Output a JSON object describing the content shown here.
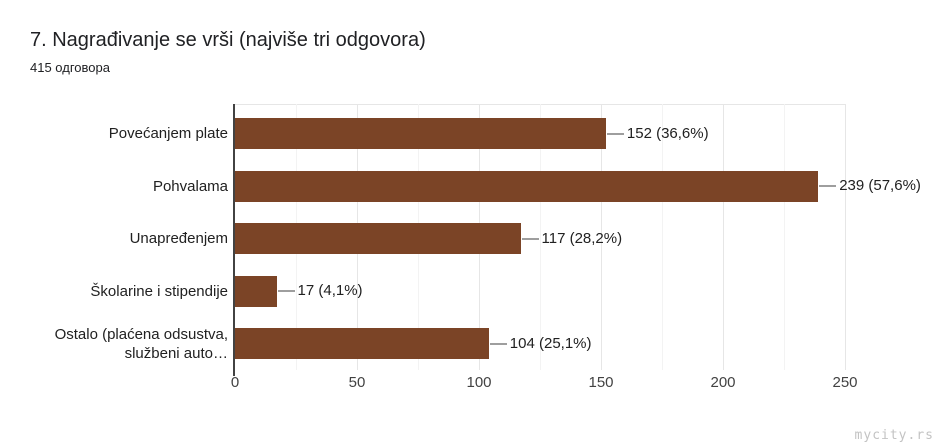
{
  "header": {
    "title": "7. Nagrađivanje se vrši (najviše tri odgovora)",
    "subtitle": "415 одговора"
  },
  "watermark": "mycity.rs",
  "chart_data": {
    "type": "bar",
    "orientation": "horizontal",
    "title": "7. Nagrađivanje se vrši (najviše tri odgovora)",
    "subtitle": "415 одговора",
    "categories": [
      "Povećanjem plate",
      "Pohvalama",
      "Unapređenjem",
      "Školarine i stipendije",
      "Ostalo (plaćena odsustva,\nslužbeni auto…"
    ],
    "values": [
      152,
      239,
      117,
      17,
      104
    ],
    "value_labels": [
      "152 (36,6%)",
      "239 (57,6%)",
      "117 (28,2%)",
      "17 (4,1%)",
      "104 (25,1%)"
    ],
    "x_ticks": [
      "0",
      "50",
      "100",
      "150",
      "200",
      "250"
    ],
    "xlim": [
      0,
      250
    ],
    "grid": "vertical, major every 50, minor every 25",
    "legend": "none",
    "colors": {
      "bar": "#7B4426",
      "axis_line": "#424242",
      "grid_major": "#e6e6e6",
      "grid_minor": "#f3f3f3",
      "value_text": "#212121",
      "leader_line": "#9e9e9e"
    }
  }
}
